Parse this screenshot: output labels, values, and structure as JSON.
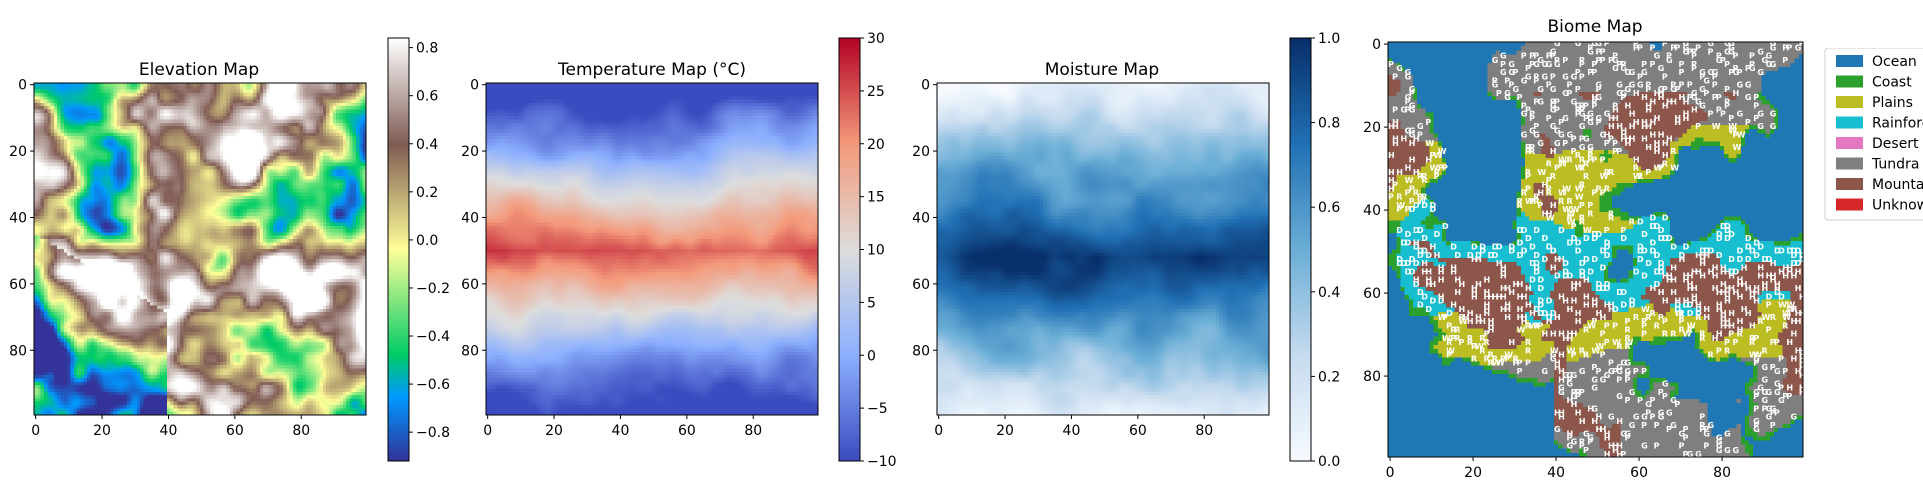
{
  "chart_data": [
    {
      "type": "heatmap",
      "title": "Elevation Map",
      "xlabel": "",
      "ylabel": "",
      "grid_size": [
        100,
        100
      ],
      "x_ticks": [
        0,
        20,
        40,
        60,
        80
      ],
      "y_ticks": [
        0,
        20,
        40,
        60,
        80
      ],
      "colormap": "terrain",
      "colorbar": {
        "range": [
          -0.92,
          0.84
        ],
        "ticks": [
          -0.8,
          -0.6,
          -0.4,
          -0.2,
          0.0,
          0.2,
          0.4,
          0.6,
          0.8
        ],
        "tick_labels": [
          "−0.8",
          "−0.6",
          "−0.4",
          "−0.2",
          "0.0",
          "0.2",
          "0.4",
          "0.6",
          "0.8"
        ]
      }
    },
    {
      "type": "heatmap",
      "title": "Temperature Map (°C)",
      "xlabel": "",
      "ylabel": "",
      "grid_size": [
        100,
        100
      ],
      "x_ticks": [
        0,
        20,
        40,
        60,
        80
      ],
      "y_ticks": [
        0,
        20,
        40,
        60,
        80
      ],
      "colormap": "coolwarm",
      "colorbar": {
        "range": [
          -10,
          30
        ],
        "ticks": [
          -10,
          -5,
          0,
          5,
          10,
          15,
          20,
          25,
          30
        ],
        "tick_labels": [
          "−10",
          "−5",
          "0",
          "5",
          "10",
          "15",
          "20",
          "25",
          "30"
        ]
      }
    },
    {
      "type": "heatmap",
      "title": "Moisture Map",
      "xlabel": "",
      "ylabel": "",
      "grid_size": [
        100,
        100
      ],
      "x_ticks": [
        0,
        20,
        40,
        60,
        80
      ],
      "y_ticks": [
        0,
        20,
        40,
        60,
        80
      ],
      "colormap": "Blues",
      "colorbar": {
        "range": [
          0.0,
          1.0
        ],
        "ticks": [
          0.0,
          0.2,
          0.4,
          0.6,
          0.8,
          1.0
        ],
        "tick_labels": [
          "0.0",
          "0.2",
          "0.4",
          "0.6",
          "0.8",
          "1.0"
        ]
      }
    },
    {
      "type": "heatmap",
      "title": "Biome Map",
      "xlabel": "",
      "ylabel": "",
      "grid_size": [
        100,
        100
      ],
      "x_ticks": [
        0,
        20,
        40,
        60,
        80
      ],
      "y_ticks": [
        0,
        20,
        40,
        60,
        80
      ],
      "legend_position": "outside-right",
      "legend": [
        {
          "label": "Ocean",
          "color": "#1f77b4"
        },
        {
          "label": "Coast",
          "color": "#2ca02c"
        },
        {
          "label": "Plains",
          "color": "#bcbd22"
        },
        {
          "label": "Rainforest",
          "color": "#17becf"
        },
        {
          "label": "Desert",
          "color": "#e377c2"
        },
        {
          "label": "Tundra",
          "color": "#7f7f7f"
        },
        {
          "label": "Mountain",
          "color": "#8c564b"
        },
        {
          "label": "Unknown",
          "color": "#d62728"
        }
      ],
      "cell_letters": [
        "P",
        "R",
        "W",
        "G",
        "D",
        "H",
        "S"
      ]
    }
  ]
}
